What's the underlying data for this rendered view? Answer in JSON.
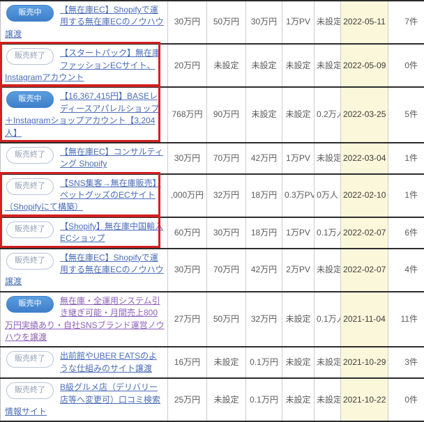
{
  "colors": {
    "badge_onsale": "#4a90d8",
    "badge_ended_border": "#b7c3d8",
    "link": "#4a6db8",
    "link_visited": "#8f62b8",
    "date_column_bg": "#fbf7da",
    "highlight_box": "#d42020",
    "row_separator": "#2b2b2b"
  },
  "status_labels": {
    "onsale": "販売中",
    "ended": "販売終了"
  },
  "rows": [
    {
      "status": "販売中",
      "status_type": "onsale",
      "title": "【無在庫EC】Shopifyで運用する無在庫ECのノウハウ譲渡",
      "price1": "30万円",
      "price2": "50万円",
      "price3": "30万円",
      "pv": "1万PV",
      "people": "未設定",
      "date": "2022-05-11",
      "count": "7件",
      "highlighted": false,
      "visited": false
    },
    {
      "status": "販売終了",
      "status_type": "ended",
      "title": "【スタートパック】無在庫ファッションECサイト、Instagramアカウント",
      "price1": "20万円",
      "price2": "未設定",
      "price3": "未設定",
      "pv": "未設定",
      "people": "未設定",
      "date": "2022-05-09",
      "count": "0件",
      "highlighted": true,
      "visited": false
    },
    {
      "status": "販売中",
      "status_type": "onsale",
      "title": "【16,367,415円】BASEレディースアパレルショップ＋Instagramショップアカウント【3,204人】",
      "price1": "768万円",
      "price2": "90万円",
      "price3": "未設定",
      "pv": "未設定",
      "people": "0.2万人",
      "date": "2022-03-25",
      "count": "5件",
      "highlighted": true,
      "visited": false
    },
    {
      "status": "販売終了",
      "status_type": "ended",
      "title": "【無在庫EC】コンサルティング Shopify",
      "price1": "30万円",
      "price2": "70万円",
      "price3": "42万円",
      "pv": "1万PV",
      "people": "未設定",
      "date": "2022-03-04",
      "count": "1件",
      "highlighted": false,
      "visited": false
    },
    {
      "status": "販売終了",
      "status_type": "ended",
      "title": "【SNS集客→無在庫販売】ペットグッズのECサイト（Shopifyにて構築）",
      "price1": ",000万円",
      "price2": "32万円",
      "price3": "18万円",
      "pv": "0.3万PV",
      "people": "0万人",
      "date": "2022-02-10",
      "count": "1件",
      "highlighted": true,
      "visited": false
    },
    {
      "status": "販売終了",
      "status_type": "ended",
      "title": "【Shopify】無在庫中国輸入ECショップ",
      "price1": "60万円",
      "price2": "30万円",
      "price3": "18万円",
      "pv": "1万PV",
      "people": "0.1万人",
      "date": "2022-02-07",
      "count": "6件",
      "highlighted": true,
      "visited": false
    },
    {
      "status": "販売終了",
      "status_type": "ended",
      "title": "【無在庫EC】Shopifyで運用する無在庫ECのノウハウ譲渡",
      "price1": "30万円",
      "price2": "70万円",
      "price3": "42万円",
      "pv": "2万PV",
      "people": "未設定",
      "date": "2022-02-07",
      "count": "4件",
      "highlighted": false,
      "visited": false
    },
    {
      "status": "販売中",
      "status_type": "onsale",
      "title": "無在庫・全運用システム引き継ぎ可能・月間売上800万円実績あり・自社SNSブランド運営ノウハウを譲渡",
      "price1": "27万円",
      "price2": "50万円",
      "price3": "32万円",
      "pv": "未設定",
      "people": "0.1万人",
      "date": "2021-11-04",
      "count": "11件",
      "highlighted": false,
      "visited": true
    },
    {
      "status": "販売終了",
      "status_type": "ended",
      "title": "出前館やUBER EATSのような仕組みのサイト譲渡",
      "price1": "16万円",
      "price2": "未設定",
      "price3": "0.1万円",
      "pv": "未設定",
      "people": "未設定",
      "date": "2021-10-29",
      "count": "3件",
      "highlighted": false,
      "visited": false
    },
    {
      "status": "販売終了",
      "status_type": "ended",
      "title": "B級グルメ店（デリバリー店等へ変更可）口コミ検索情報サイト",
      "price1": "25万円",
      "price2": "未設定",
      "price3": "0.1万円",
      "pv": "未設定",
      "people": "未設定",
      "date": "2021-10-22",
      "count": "0件",
      "highlighted": false,
      "visited": false
    }
  ]
}
